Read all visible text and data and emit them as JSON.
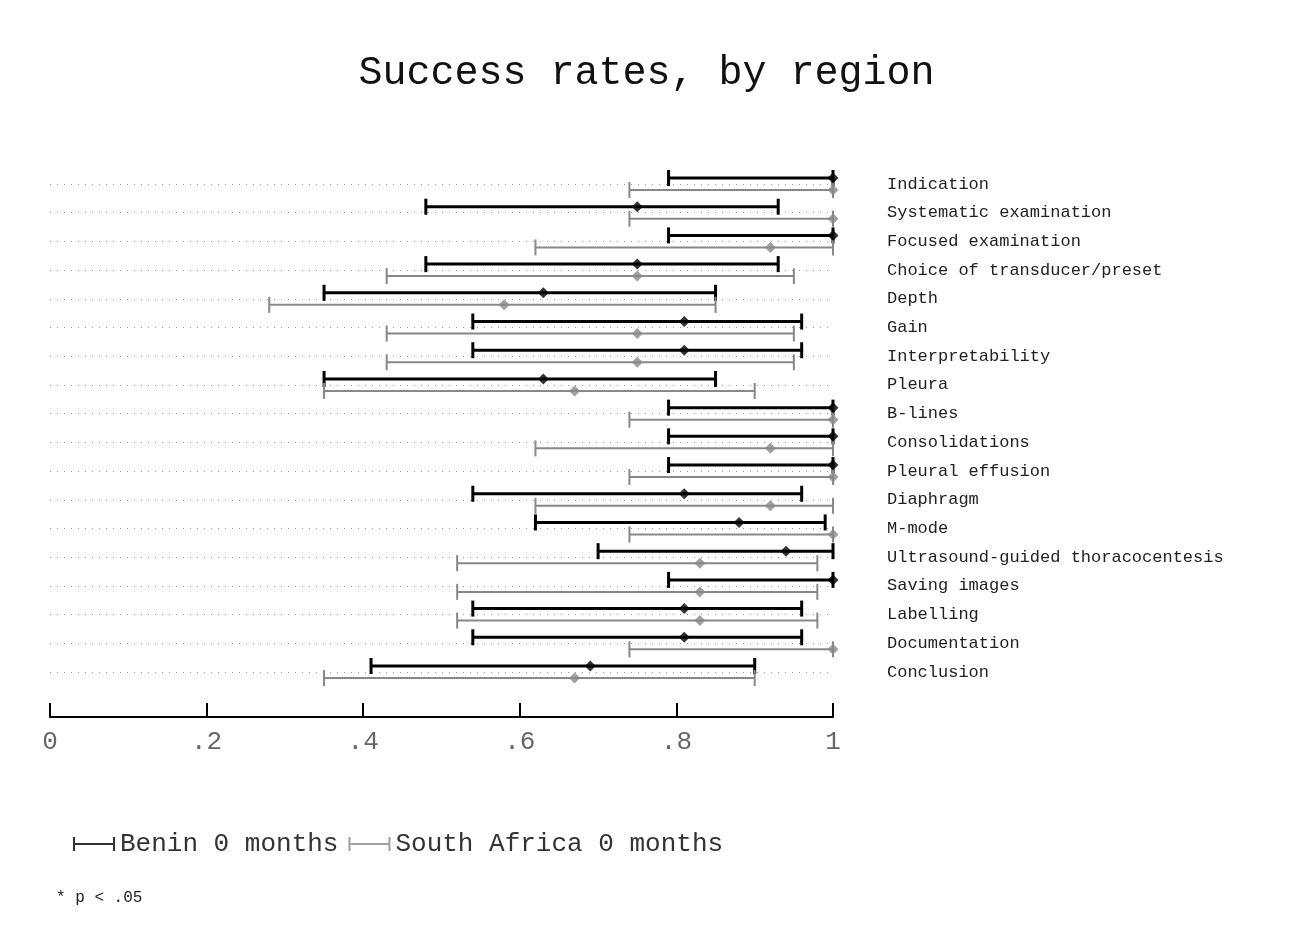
{
  "chart_data": {
    "type": "scatter",
    "orientation": "horizontal",
    "title": "Success rates, by region",
    "categories": [
      "Indication",
      "Systematic examination",
      "Focused examination",
      "Choice of transducer/preset",
      "Depth",
      "Gain",
      "Interpretability",
      "Pleura",
      "B-lines",
      "Consolidations",
      "Pleural effusion",
      "Diaphragm",
      "M-mode",
      "Ultrasound-guided thoracocentesis",
      "Saving images",
      "Labelling",
      "Documentation",
      "Conclusion"
    ],
    "series": [
      {
        "name": "Benin 0 months",
        "color": "#000000",
        "values": [
          1,
          0.75,
          1,
          0.75,
          0.63,
          0.81,
          0.81,
          0.63,
          1,
          1,
          1,
          0.81,
          0.88,
          0.94,
          1,
          0.81,
          0.81,
          0.69
        ],
        "errors": [
          [
            0.79,
            1
          ],
          [
            0.48,
            0.93
          ],
          [
            0.79,
            1
          ],
          [
            0.48,
            0.93
          ],
          [
            0.35,
            0.85
          ],
          [
            0.54,
            0.96
          ],
          [
            0.54,
            0.96
          ],
          [
            0.35,
            0.85
          ],
          [
            0.79,
            1
          ],
          [
            0.79,
            1
          ],
          [
            0.79,
            1
          ],
          [
            0.54,
            0.96
          ],
          [
            0.62,
            0.99
          ],
          [
            0.7,
            1
          ],
          [
            0.79,
            1
          ],
          [
            0.54,
            0.96
          ],
          [
            0.54,
            0.96
          ],
          [
            0.41,
            0.9
          ]
        ]
      },
      {
        "name": "South Africa 0 months",
        "color": "#888888",
        "values": [
          1,
          1,
          0.92,
          0.75,
          0.58,
          0.75,
          0.75,
          0.67,
          1,
          0.92,
          1,
          0.92,
          1,
          0.83,
          0.83,
          0.83,
          1,
          0.67
        ],
        "errors": [
          [
            0.74,
            1
          ],
          [
            0.74,
            1
          ],
          [
            0.62,
            1
          ],
          [
            0.43,
            0.95
          ],
          [
            0.28,
            0.85
          ],
          [
            0.43,
            0.95
          ],
          [
            0.43,
            0.95
          ],
          [
            0.35,
            0.9
          ],
          [
            0.74,
            1
          ],
          [
            0.62,
            1
          ],
          [
            0.74,
            1
          ],
          [
            0.62,
            1
          ],
          [
            0.74,
            1
          ],
          [
            0.52,
            0.98
          ],
          [
            0.52,
            0.98
          ],
          [
            0.52,
            0.98
          ],
          [
            0.74,
            1
          ],
          [
            0.35,
            0.9
          ]
        ]
      }
    ],
    "xlim": [
      0,
      1
    ],
    "xticks": [
      0,
      {
        "value": 0.2,
        "label": ".2"
      },
      {
        "value": 0.4,
        "label": ".4"
      },
      {
        "value": 0.6,
        "label": ".6"
      },
      {
        "value": 0.8,
        "label": ".8"
      },
      1
    ],
    "grid": "y",
    "marker": "diamond",
    "legend": "bottom left",
    "annotations": [
      "* p < .05"
    ]
  }
}
